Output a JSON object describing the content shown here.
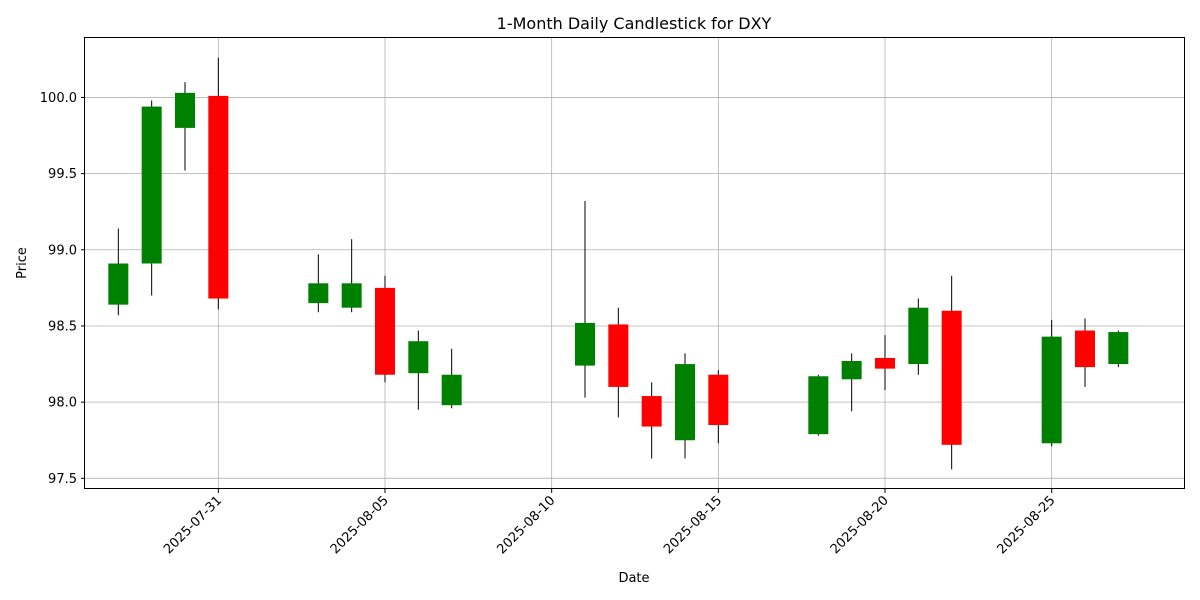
{
  "chart_data": {
    "type": "candlestick",
    "title": "1-Month Daily Candlestick for DXY",
    "xlabel": "Date",
    "ylabel": "Price",
    "ylim": [
      97.43,
      100.39
    ],
    "xlim": [
      "2025-07-27",
      "2025-08-29"
    ],
    "grid": true,
    "up_color": "#008000",
    "down_color": "#ff0000",
    "wick_color": "#000000",
    "x_ticks": [
      "2025-07-31",
      "2025-08-05",
      "2025-08-10",
      "2025-08-15",
      "2025-08-20",
      "2025-08-25"
    ],
    "y_ticks": [
      "97.5",
      "98.0",
      "98.5",
      "99.0",
      "99.5",
      "100.0"
    ],
    "candles": [
      {
        "date": "2025-07-28",
        "open": 98.64,
        "high": 99.14,
        "low": 98.57,
        "close": 98.91
      },
      {
        "date": "2025-07-29",
        "open": 98.91,
        "high": 99.98,
        "low": 98.7,
        "close": 99.94
      },
      {
        "date": "2025-07-30",
        "open": 99.8,
        "high": 100.1,
        "low": 99.52,
        "close": 100.03
      },
      {
        "date": "2025-07-31",
        "open": 100.01,
        "high": 100.26,
        "low": 98.61,
        "close": 98.68
      },
      {
        "date": "2025-08-03",
        "open": 98.65,
        "high": 98.97,
        "low": 98.59,
        "close": 98.78
      },
      {
        "date": "2025-08-04",
        "open": 98.62,
        "high": 99.07,
        "low": 98.59,
        "close": 98.78
      },
      {
        "date": "2025-08-05",
        "open": 98.75,
        "high": 98.83,
        "low": 98.13,
        "close": 98.18
      },
      {
        "date": "2025-08-06",
        "open": 98.19,
        "high": 98.47,
        "low": 97.95,
        "close": 98.4
      },
      {
        "date": "2025-08-07",
        "open": 97.98,
        "high": 98.35,
        "low": 97.96,
        "close": 98.18
      },
      {
        "date": "2025-08-11",
        "open": 98.24,
        "high": 99.32,
        "low": 98.03,
        "close": 98.52
      },
      {
        "date": "2025-08-12",
        "open": 98.51,
        "high": 98.62,
        "low": 97.9,
        "close": 98.1
      },
      {
        "date": "2025-08-13",
        "open": 98.04,
        "high": 98.13,
        "low": 97.63,
        "close": 97.84
      },
      {
        "date": "2025-08-14",
        "open": 97.75,
        "high": 98.32,
        "low": 97.63,
        "close": 98.25
      },
      {
        "date": "2025-08-15",
        "open": 98.18,
        "high": 98.21,
        "low": 97.73,
        "close": 97.85
      },
      {
        "date": "2025-08-18",
        "open": 97.79,
        "high": 98.18,
        "low": 97.78,
        "close": 98.17
      },
      {
        "date": "2025-08-19",
        "open": 98.15,
        "high": 98.32,
        "low": 97.94,
        "close": 98.27
      },
      {
        "date": "2025-08-20",
        "open": 98.29,
        "high": 98.44,
        "low": 98.08,
        "close": 98.22
      },
      {
        "date": "2025-08-21",
        "open": 98.25,
        "high": 98.68,
        "low": 98.18,
        "close": 98.62
      },
      {
        "date": "2025-08-22",
        "open": 98.6,
        "high": 98.83,
        "low": 97.56,
        "close": 97.72
      },
      {
        "date": "2025-08-25",
        "open": 97.73,
        "high": 98.54,
        "low": 97.71,
        "close": 98.43
      },
      {
        "date": "2025-08-26",
        "open": 98.47,
        "high": 98.55,
        "low": 98.1,
        "close": 98.23
      },
      {
        "date": "2025-08-27",
        "open": 98.25,
        "high": 98.47,
        "low": 98.23,
        "close": 98.46
      }
    ]
  }
}
